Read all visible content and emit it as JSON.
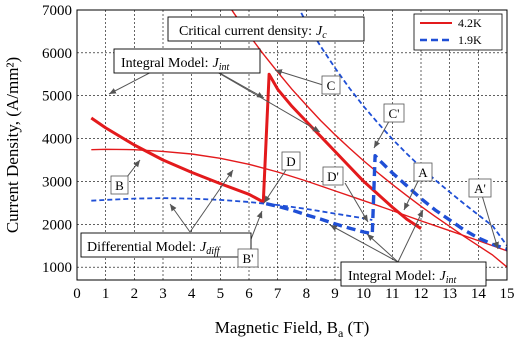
{
  "chart_data": {
    "type": "line",
    "xlabel_main": "Magnetic Field, B",
    "xlabel_sub": "a",
    "xlabel_unit": " (T)",
    "ylabel": "Current Density, (A/mm²)",
    "xlim": [
      0,
      15
    ],
    "ylim": [
      700,
      7000
    ],
    "x_ticks": [
      "0",
      "1",
      "2",
      "3",
      "4",
      "5",
      "6",
      "7",
      "8",
      "9",
      "10",
      "11",
      "12",
      "13",
      "14",
      "15"
    ],
    "y_ticks": [
      "1000",
      "2000",
      "3000",
      "4000",
      "5000",
      "6000",
      "7000"
    ],
    "grid": true,
    "legend_position": "top-right",
    "colors": {
      "red": "#e31a1c",
      "blue": "#1f4fd6"
    },
    "series": [
      {
        "name": "4.2K",
        "color": "#e31a1c",
        "curves": {
          "critical": {
            "x": [
              4.5,
              5,
              5.5,
              6,
              6.5,
              7,
              7.5,
              8,
              8.5,
              9,
              9.5,
              10,
              10.5,
              11,
              11.5,
              12,
              12.5,
              13,
              13.5,
              14,
              14.5,
              15
            ],
            "y": [
              7900,
              7400,
              6900,
              6420,
              5970,
              5550,
              5150,
              4780,
              4420,
              4090,
              3780,
              3480,
              3200,
              2930,
              2670,
              2420,
              2180,
              1950,
              1720,
              1500,
              1280,
              1000
            ]
          },
          "integral": {
            "x": [
              0.5,
              1,
              2,
              3,
              4,
              5,
              6,
              6.5,
              6.7,
              7,
              7.5,
              8,
              8.5,
              9,
              9.5,
              10,
              10.5,
              11,
              11.5,
              12
            ],
            "y": [
              4480,
              4250,
              3850,
              3500,
              3210,
              2950,
              2700,
              2520,
              5500,
              5150,
              4750,
              4400,
              4050,
              3700,
              3350,
              3000,
              2700,
              2400,
              2120,
              1900
            ]
          },
          "differential": {
            "x": [
              0.5,
              1,
              2,
              3,
              4,
              5,
              6,
              7,
              8,
              9,
              10,
              11,
              12,
              13,
              14,
              15
            ],
            "y": [
              3740,
              3750,
              3740,
              3700,
              3640,
              3540,
              3400,
              3220,
              3010,
              2780,
              2550,
              2320,
              2080,
              1850,
              1620,
              1380
            ]
          }
        }
      },
      {
        "name": "1.9K",
        "color": "#1f4fd6",
        "curves": {
          "critical": {
            "x": [
              7.7,
              8,
              8.5,
              9,
              9.5,
              10,
              10.5,
              11,
              11.5,
              12,
              12.5,
              13,
              13.5,
              14,
              14.5,
              15
            ],
            "y": [
              7100,
              6700,
              6150,
              5650,
              5180,
              4750,
              4360,
              3990,
              3650,
              3330,
              3030,
              2750,
              2480,
              2220,
              1960,
              1500
            ]
          },
          "integral": {
            "x": [
              6.6,
              7,
              7.5,
              8,
              8.5,
              9,
              9.5,
              10,
              10.3,
              10.4,
              10.6,
              11,
              11.5,
              12,
              12.5,
              13,
              13.5,
              14,
              14.5,
              15
            ],
            "y": [
              2480,
              2420,
              2330,
              2220,
              2120,
              2010,
              1910,
              1820,
              1780,
              3600,
              3460,
              3200,
              2900,
              2600,
              2330,
              2100,
              1870,
              1680,
              1530,
              1420
            ]
          },
          "differential": {
            "x": [
              0.5,
              1,
              2,
              3,
              4,
              5,
              6,
              7,
              8,
              9,
              10,
              10.3
            ],
            "y": [
              2550,
              2570,
              2600,
              2610,
              2600,
              2570,
              2520,
              2450,
              2360,
              2250,
              2140,
              2100
            ]
          }
        }
      }
    ],
    "annotations": {
      "critical_title": "Critical current density:",
      "critical_symbol": "J",
      "critical_sub": "c",
      "integral_top_title": "Integral Model:",
      "integral_top_symbol": "J",
      "integral_top_sub": "int",
      "differential_title": "Differential Model:",
      "differential_symbol": "J",
      "differential_sub": "diff",
      "integral_bottom_title": "Integral Model:",
      "integral_bottom_symbol": "J",
      "integral_bottom_sub": "int",
      "point_labels": [
        "B",
        "B'",
        "C",
        "C'",
        "D",
        "D'",
        "A",
        "A'"
      ]
    }
  }
}
